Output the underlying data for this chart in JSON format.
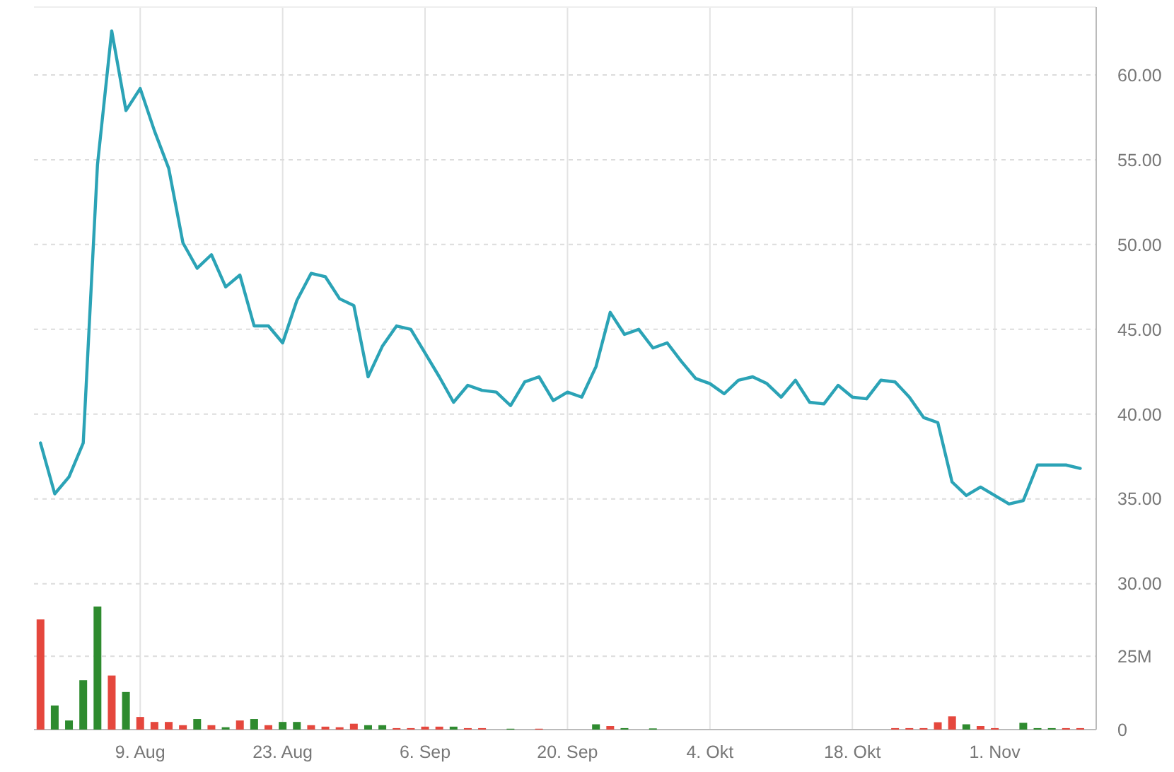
{
  "chart_data": {
    "type": "line",
    "categories": [
      null,
      null,
      null,
      null,
      null,
      null,
      null,
      "9. Aug",
      null,
      null,
      null,
      null,
      null,
      null,
      null,
      null,
      null,
      "23. Aug",
      null,
      null,
      null,
      null,
      null,
      null,
      null,
      null,
      null,
      "6. Sep",
      null,
      null,
      null,
      null,
      null,
      null,
      null,
      null,
      null,
      "20. Sep",
      null,
      null,
      null,
      null,
      null,
      null,
      null,
      null,
      null,
      "4. Okt",
      null,
      null,
      null,
      null,
      null,
      null,
      null,
      null,
      null,
      "18. Okt",
      null,
      null,
      null,
      null,
      null,
      null,
      null,
      null,
      null,
      "1. Nov",
      null,
      null,
      null,
      null,
      null,
      null
    ],
    "series": [
      {
        "color": "#2ba3b6",
        "values": [
          38.3,
          35.3,
          36.3,
          38.3,
          54.7,
          62.6,
          57.9,
          59.2,
          56.7,
          54.5,
          50.1,
          48.6,
          49.4,
          47.5,
          48.2,
          45.2,
          45.2,
          44.2,
          46.7,
          48.3,
          48.1,
          46.8,
          46.4,
          42.2,
          44.0,
          45.2,
          45.0,
          43.6,
          42.2,
          40.7,
          41.7,
          41.4,
          41.3,
          40.5,
          41.9,
          42.2,
          40.8,
          41.3,
          41.0,
          42.8,
          46.0,
          44.7,
          45.0,
          43.9,
          44.2,
          43.1,
          42.1,
          41.8,
          41.2,
          42.0,
          42.2,
          41.8,
          41.0,
          42.0,
          40.7,
          40.6,
          41.7,
          41.0,
          40.9,
          42.0,
          41.9,
          41.0,
          39.8,
          39.5,
          36.0,
          35.2,
          35.7,
          35.2,
          34.7,
          34.9,
          37.0,
          37.0,
          37.0,
          36.8
        ]
      },
      {
        "type": "bar",
        "axis": "y2",
        "values": [
          37.5,
          8.2,
          3.1,
          16.8,
          41.9,
          18.4,
          12.8,
          4.3,
          2.6,
          2.6,
          1.5,
          3.6,
          1.5,
          0.8,
          3.1,
          3.6,
          1.5,
          2.6,
          2.6,
          1.5,
          1.0,
          0.8,
          2.0,
          1.5,
          1.5,
          0.5,
          0.5,
          1.0,
          1.0,
          1.0,
          0.5,
          0.5,
          0,
          0.3,
          0,
          0.3,
          0,
          0,
          0,
          1.8,
          1.2,
          0.5,
          0,
          0.4,
          0,
          0,
          0,
          0,
          0,
          0,
          0,
          0,
          0,
          0,
          0,
          0,
          0,
          0,
          0,
          0,
          0.5,
          0.5,
          0.5,
          2.5,
          4.5,
          1.8,
          1.2,
          0.5,
          0,
          2.3,
          0.5,
          0.5,
          0.5,
          0.5
        ],
        "colors": [
          "#e5473d",
          "#2e8b2f",
          "#2e8b2f",
          "#2e8b2f",
          "#2e8b2f",
          "#e5473d",
          "#2e8b2f",
          "#e5473d",
          "#e5473d",
          "#e5473d",
          "#e5473d",
          "#2e8b2f",
          "#e5473d",
          "#2e8b2f",
          "#e5473d",
          "#2e8b2f",
          "#e5473d",
          "#2e8b2f",
          "#2e8b2f",
          "#e5473d",
          "#e5473d",
          "#e5473d",
          "#e5473d",
          "#2e8b2f",
          "#2e8b2f",
          "#e5473d",
          "#e5473d",
          "#e5473d",
          "#e5473d",
          "#2e8b2f",
          "#e5473d",
          "#e5473d",
          "#e5473d",
          "#2e8b2f",
          "#e5473d",
          "#e5473d",
          "#e5473d",
          "#e5473d",
          "#e5473d",
          "#2e8b2f",
          "#e5473d",
          "#2e8b2f",
          "#e5473d",
          "#2e8b2f",
          "#e5473d",
          "#e5473d",
          "#e5473d",
          "#e5473d",
          "#e5473d",
          "#e5473d",
          "#e5473d",
          "#e5473d",
          "#e5473d",
          "#e5473d",
          "#e5473d",
          "#e5473d",
          "#e5473d",
          "#e5473d",
          "#e5473d",
          "#e5473d",
          "#e5473d",
          "#e5473d",
          "#e5473d",
          "#e5473d",
          "#e5473d",
          "#2e8b2f",
          "#e5473d",
          "#e5473d",
          "#e5473d",
          "#2e8b2f",
          "#2e8b2f",
          "#2e8b2f",
          "#e5473d",
          "#e5473d"
        ]
      }
    ],
    "ylim": [
      21.4,
      64
    ],
    "yticks": [
      {
        "value": 30,
        "label": "30.00"
      },
      {
        "value": 35,
        "label": "35.00"
      },
      {
        "value": 40,
        "label": "40.00"
      },
      {
        "value": 45,
        "label": "45.00"
      },
      {
        "value": 50,
        "label": "50.00"
      },
      {
        "value": 55,
        "label": "55.00"
      },
      {
        "value": 60,
        "label": "60.00"
      }
    ],
    "y2lim": [
      0,
      246
    ],
    "y2ticks": [
      {
        "value": 0,
        "label": "0"
      },
      {
        "value": 25,
        "label": "25M"
      }
    ],
    "grid": true
  }
}
